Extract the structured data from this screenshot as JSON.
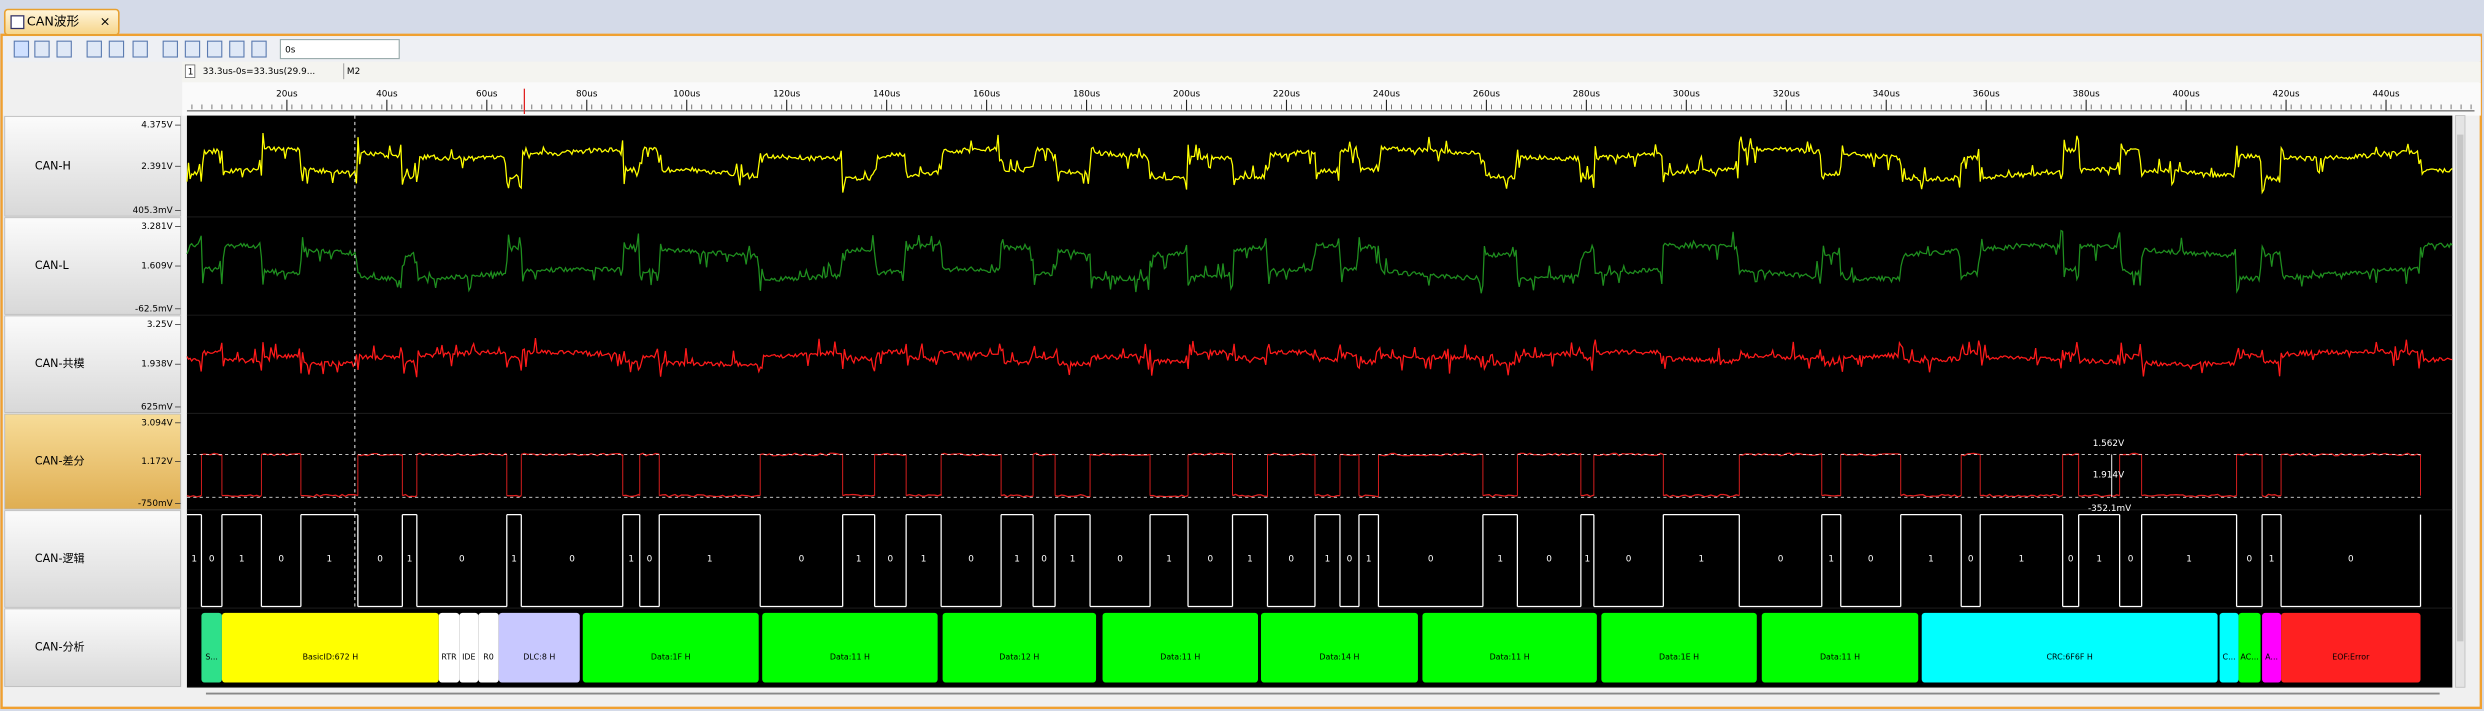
{
  "tab": {
    "title": "CAN波形"
  },
  "toolbar": {
    "time_input": "0s"
  },
  "cursor_bar": {
    "index": "1",
    "info": "33.3us-0s=33.3us(29.9...",
    "marker": "M2"
  },
  "chart_data": {
    "type": "logic-analyzer",
    "xlim": [
      0,
      457.7
    ],
    "xticks": [
      {
        "value": 20,
        "label": "20us"
      },
      {
        "value": 40,
        "label": "40us"
      },
      {
        "value": 60,
        "label": "60us"
      },
      {
        "value": 80,
        "label": "80us"
      },
      {
        "value": 100,
        "label": "100us"
      },
      {
        "value": 120,
        "label": "120us"
      },
      {
        "value": 140,
        "label": "140us"
      },
      {
        "value": 160,
        "label": "160us"
      },
      {
        "value": 180,
        "label": "180us"
      },
      {
        "value": 200,
        "label": "200us"
      },
      {
        "value": 220,
        "label": "220us"
      },
      {
        "value": 240,
        "label": "240us"
      },
      {
        "value": 260,
        "label": "260us"
      },
      {
        "value": 280,
        "label": "280us"
      },
      {
        "value": 300,
        "label": "300us"
      },
      {
        "value": 320,
        "label": "320us"
      },
      {
        "value": 340,
        "label": "340us"
      },
      {
        "value": 360,
        "label": "360us"
      },
      {
        "value": 380,
        "label": "380us"
      },
      {
        "value": 400,
        "label": "400us"
      },
      {
        "value": 420,
        "label": "420us"
      },
      {
        "value": 440,
        "label": "440us"
      }
    ],
    "channels": [
      {
        "name": "CAN-H",
        "color": "#ffff00",
        "scale": [
          "4.375V",
          "2.391V",
          "405.3mV"
        ]
      },
      {
        "name": "CAN-L",
        "color": "#1f8f1f",
        "scale": [
          "3.281V",
          "1.609V",
          "-62.5mV"
        ]
      },
      {
        "name": "CAN-共模",
        "color": "#ff1a1a",
        "scale": [
          "3.25V",
          "1.938V",
          "625mV"
        ]
      },
      {
        "name": "CAN-差分",
        "color": "#e02020",
        "scale": [
          "3.094V",
          "1.172V",
          "-750mV"
        ]
      }
    ],
    "logic": {
      "name": "CAN-逻辑",
      "bits": [
        1,
        0,
        1,
        0,
        1,
        0,
        1,
        0,
        1,
        0,
        1,
        0,
        1,
        0,
        1,
        0,
        1,
        0,
        1,
        0,
        1,
        0,
        1,
        0,
        1,
        0,
        1,
        0,
        1,
        0,
        1,
        0,
        1,
        0,
        1,
        0,
        1,
        0,
        1,
        0,
        1,
        0,
        1,
        0,
        1,
        0,
        1,
        0
      ],
      "edges": [
        0,
        2.9,
        7.0,
        14.9,
        22.8,
        34.2,
        43.1,
        46.0,
        64.0,
        66.9,
        87.2,
        90.6,
        94.5,
        114.7,
        131.2,
        137.6,
        143.9,
        150.9,
        162.9,
        169.3,
        173.7,
        180.7,
        192.7,
        200.3,
        209.2,
        216.2,
        225.7,
        230.7,
        234.5,
        238.4,
        259.3,
        266.2,
        278.9,
        281.5,
        295.4,
        310.6,
        327.1,
        330.9,
        342.9,
        355.0,
        358.8,
        375.3,
        378.5,
        386.7,
        391.1,
        410.1,
        415.2,
        419.0,
        446.9
      ]
    },
    "decode": {
      "name": "CAN-分析",
      "segments": [
        {
          "label": "S...",
          "start": 2.9,
          "end": 7.0,
          "color": "#2ee08a"
        },
        {
          "label": "BasicID:672 H",
          "start": 7.0,
          "end": 50.4,
          "color": "#ffff00"
        },
        {
          "label": "RTR",
          "start": 50.4,
          "end": 54.5,
          "color": "#ffffff"
        },
        {
          "label": "IDE",
          "start": 54.5,
          "end": 58.3,
          "color": "#ffffff"
        },
        {
          "label": "R0",
          "start": 58.3,
          "end": 62.4,
          "color": "#ffffff"
        },
        {
          "label": "DLC:8 H",
          "start": 62.4,
          "end": 78.6,
          "color": "#c8c8ff"
        },
        {
          "label": "Data:1F H",
          "start": 79.2,
          "end": 114.4,
          "color": "#00ff00"
        },
        {
          "label": "Data:11 H",
          "start": 115.1,
          "end": 150.2,
          "color": "#00ff00"
        },
        {
          "label": "Data:12 H",
          "start": 151.2,
          "end": 181.9,
          "color": "#00ff00"
        },
        {
          "label": "Data:11 H",
          "start": 183.2,
          "end": 214.3,
          "color": "#00ff00"
        },
        {
          "label": "Data:14 H",
          "start": 214.9,
          "end": 246.3,
          "color": "#00ff00"
        },
        {
          "label": "Data:11 H",
          "start": 247.2,
          "end": 282.1,
          "color": "#00ff00"
        },
        {
          "label": "Data:1E H",
          "start": 283.0,
          "end": 314.1,
          "color": "#00ff00"
        },
        {
          "label": "Data:11 H",
          "start": 315.1,
          "end": 346.4,
          "color": "#00ff00"
        },
        {
          "label": "CRC:6F6F H",
          "start": 347.1,
          "end": 406.3,
          "color": "#00ffff"
        },
        {
          "label": "C...",
          "start": 406.7,
          "end": 410.5,
          "color": "#00ffff"
        },
        {
          "label": "AC...",
          "start": 410.5,
          "end": 414.9,
          "color": "#00ff00"
        },
        {
          "label": "A...",
          "start": 415.2,
          "end": 419.0,
          "color": "#ff00ff"
        },
        {
          "label": "EOF:Error",
          "start": 419.0,
          "end": 446.9,
          "color": "#ff2020"
        }
      ]
    },
    "measurements": [
      "1.562V",
      "1.914V",
      "-352.1mV"
    ]
  }
}
